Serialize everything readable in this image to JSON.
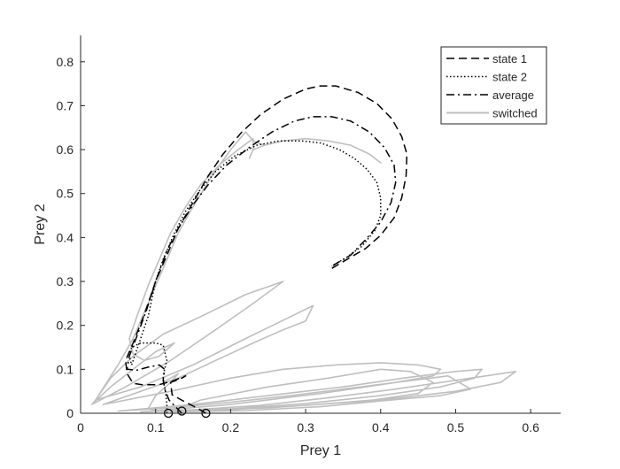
{
  "chart_data": {
    "type": "line",
    "title": "",
    "xlabel": "Prey 1",
    "ylabel": "Prey 2",
    "xlim": [
      0,
      0.64
    ],
    "ylim": [
      0,
      0.86
    ],
    "x_ticks": [
      0,
      0.1,
      0.2,
      0.3,
      0.4,
      0.5,
      0.6
    ],
    "x_tick_labels": [
      "0",
      "0.1",
      "0.2",
      "0.3",
      "0.4",
      "0.5",
      "0.6"
    ],
    "y_ticks": [
      0,
      0.1,
      0.2,
      0.3,
      0.4,
      0.5,
      0.6,
      0.7,
      0.8
    ],
    "y_tick_labels": [
      "0",
      "0.1",
      "0.2",
      "0.3",
      "0.4",
      "0.5",
      "0.6",
      "0.7",
      "0.8"
    ],
    "grid": false,
    "legend_position": "top-right",
    "series": [
      {
        "name": "state 1",
        "style": "dashed",
        "color": "#000000",
        "points": [
          [
            0.167,
            0.0
          ],
          [
            0.155,
            0.012
          ],
          [
            0.14,
            0.025
          ],
          [
            0.122,
            0.042
          ],
          [
            0.12,
            0.07
          ],
          [
            0.135,
            0.08
          ],
          [
            0.14,
            0.085
          ],
          [
            0.125,
            0.075
          ],
          [
            0.105,
            0.065
          ],
          [
            0.082,
            0.065
          ],
          [
            0.07,
            0.068
          ],
          [
            0.062,
            0.09
          ],
          [
            0.06,
            0.12
          ],
          [
            0.07,
            0.16
          ],
          [
            0.085,
            0.225
          ],
          [
            0.1,
            0.3
          ],
          [
            0.115,
            0.36
          ],
          [
            0.13,
            0.42
          ],
          [
            0.15,
            0.48
          ],
          [
            0.17,
            0.54
          ],
          [
            0.19,
            0.59
          ],
          [
            0.215,
            0.64
          ],
          [
            0.24,
            0.68
          ],
          [
            0.27,
            0.715
          ],
          [
            0.3,
            0.738
          ],
          [
            0.32,
            0.745
          ],
          [
            0.34,
            0.745
          ],
          [
            0.37,
            0.73
          ],
          [
            0.395,
            0.705
          ],
          [
            0.415,
            0.67
          ],
          [
            0.428,
            0.63
          ],
          [
            0.435,
            0.59
          ],
          [
            0.434,
            0.54
          ],
          [
            0.428,
            0.49
          ],
          [
            0.418,
            0.445
          ],
          [
            0.4,
            0.405
          ],
          [
            0.38,
            0.375
          ],
          [
            0.355,
            0.35
          ],
          [
            0.335,
            0.33
          ]
        ]
      },
      {
        "name": "state 2",
        "style": "dotted",
        "color": "#000000",
        "points": [
          [
            0.115,
            0.0
          ],
          [
            0.115,
            0.02
          ],
          [
            0.113,
            0.05
          ],
          [
            0.11,
            0.08
          ],
          [
            0.112,
            0.1
          ],
          [
            0.115,
            0.12
          ],
          [
            0.11,
            0.155
          ],
          [
            0.1,
            0.16
          ],
          [
            0.08,
            0.16
          ],
          [
            0.068,
            0.15
          ],
          [
            0.065,
            0.13
          ],
          [
            0.068,
            0.11
          ],
          [
            0.078,
            0.16
          ],
          [
            0.09,
            0.22
          ],
          [
            0.1,
            0.3
          ],
          [
            0.11,
            0.35
          ],
          [
            0.125,
            0.41
          ],
          [
            0.14,
            0.46
          ],
          [
            0.16,
            0.51
          ],
          [
            0.18,
            0.55
          ],
          [
            0.205,
            0.585
          ],
          [
            0.235,
            0.61
          ],
          [
            0.265,
            0.62
          ],
          [
            0.295,
            0.62
          ],
          [
            0.32,
            0.615
          ],
          [
            0.345,
            0.6
          ],
          [
            0.365,
            0.58
          ],
          [
            0.382,
            0.555
          ],
          [
            0.395,
            0.525
          ],
          [
            0.4,
            0.49
          ],
          [
            0.4,
            0.45
          ],
          [
            0.392,
            0.415
          ],
          [
            0.375,
            0.38
          ],
          [
            0.355,
            0.355
          ],
          [
            0.335,
            0.335
          ]
        ]
      },
      {
        "name": "average",
        "style": "dashdot",
        "color": "#000000",
        "points": [
          [
            0.135,
            0.0
          ],
          [
            0.128,
            0.012
          ],
          [
            0.118,
            0.03
          ],
          [
            0.113,
            0.05
          ],
          [
            0.11,
            0.075
          ],
          [
            0.112,
            0.1
          ],
          [
            0.105,
            0.11
          ],
          [
            0.09,
            0.105
          ],
          [
            0.075,
            0.098
          ],
          [
            0.062,
            0.1
          ],
          [
            0.065,
            0.13
          ],
          [
            0.075,
            0.175
          ],
          [
            0.088,
            0.235
          ],
          [
            0.1,
            0.3
          ],
          [
            0.115,
            0.37
          ],
          [
            0.13,
            0.42
          ],
          [
            0.15,
            0.475
          ],
          [
            0.17,
            0.52
          ],
          [
            0.195,
            0.565
          ],
          [
            0.225,
            0.605
          ],
          [
            0.255,
            0.64
          ],
          [
            0.285,
            0.665
          ],
          [
            0.31,
            0.675
          ],
          [
            0.335,
            0.675
          ],
          [
            0.36,
            0.665
          ],
          [
            0.385,
            0.64
          ],
          [
            0.405,
            0.605
          ],
          [
            0.418,
            0.565
          ],
          [
            0.42,
            0.525
          ],
          [
            0.414,
            0.48
          ],
          [
            0.4,
            0.435
          ],
          [
            0.38,
            0.395
          ],
          [
            0.36,
            0.36
          ],
          [
            0.345,
            0.345
          ],
          [
            0.335,
            0.335
          ]
        ]
      },
      {
        "name": "switched",
        "style": "solid",
        "color": "#bfbfbf",
        "points": [
          [
            0.015,
            0.02
          ],
          [
            0.04,
            0.06
          ],
          [
            0.07,
            0.1
          ],
          [
            0.1,
            0.14
          ],
          [
            0.125,
            0.16
          ],
          [
            0.105,
            0.13
          ],
          [
            0.085,
            0.12
          ],
          [
            0.07,
            0.135
          ],
          [
            0.065,
            0.17
          ],
          [
            0.075,
            0.22
          ],
          [
            0.09,
            0.29
          ],
          [
            0.105,
            0.35
          ],
          [
            0.12,
            0.41
          ],
          [
            0.14,
            0.47
          ],
          [
            0.16,
            0.52
          ],
          [
            0.185,
            0.565
          ],
          [
            0.21,
            0.6
          ],
          [
            0.23,
            0.625
          ],
          [
            0.23,
            0.6
          ],
          [
            0.225,
            0.58
          ],
          [
            0.23,
            0.6
          ],
          [
            0.245,
            0.61
          ],
          [
            0.27,
            0.62
          ],
          [
            0.3,
            0.625
          ],
          [
            0.33,
            0.62
          ],
          [
            0.36,
            0.61
          ],
          [
            0.385,
            0.59
          ],
          [
            0.4,
            0.57
          ],
          [
            0.385,
            0.59
          ],
          [
            0.36,
            0.61
          ],
          [
            0.33,
            0.62
          ],
          [
            0.3,
            0.625
          ],
          [
            0.27,
            0.62
          ],
          [
            0.245,
            0.61
          ],
          [
            0.23,
            0.62
          ],
          [
            0.22,
            0.64
          ],
          [
            0.2,
            0.6
          ],
          [
            0.175,
            0.54
          ],
          [
            0.15,
            0.47
          ],
          [
            0.13,
            0.41
          ],
          [
            0.11,
            0.33
          ],
          [
            0.09,
            0.25
          ],
          [
            0.07,
            0.17
          ],
          [
            0.05,
            0.11
          ],
          [
            0.035,
            0.07
          ],
          [
            0.02,
            0.03
          ],
          [
            0.015,
            0.02
          ],
          [
            0.06,
            0.06
          ],
          [
            0.12,
            0.12
          ],
          [
            0.18,
            0.19
          ],
          [
            0.23,
            0.25
          ],
          [
            0.27,
            0.3
          ],
          [
            0.22,
            0.27
          ],
          [
            0.16,
            0.22
          ],
          [
            0.11,
            0.18
          ],
          [
            0.07,
            0.13
          ],
          [
            0.04,
            0.08
          ],
          [
            0.02,
            0.03
          ],
          [
            0.08,
            0.06
          ],
          [
            0.15,
            0.11
          ],
          [
            0.22,
            0.17
          ],
          [
            0.28,
            0.22
          ],
          [
            0.31,
            0.245
          ],
          [
            0.3,
            0.21
          ],
          [
            0.27,
            0.19
          ],
          [
            0.23,
            0.16
          ],
          [
            0.18,
            0.12
          ],
          [
            0.13,
            0.08
          ],
          [
            0.08,
            0.05
          ],
          [
            0.03,
            0.02
          ],
          [
            0.12,
            0.05
          ],
          [
            0.2,
            0.08
          ],
          [
            0.27,
            0.1
          ],
          [
            0.34,
            0.11
          ],
          [
            0.4,
            0.115
          ],
          [
            0.45,
            0.11
          ],
          [
            0.48,
            0.1
          ],
          [
            0.47,
            0.085
          ],
          [
            0.42,
            0.07
          ],
          [
            0.35,
            0.055
          ],
          [
            0.28,
            0.04
          ],
          [
            0.2,
            0.025
          ],
          [
            0.12,
            0.012
          ],
          [
            0.05,
            0.005
          ],
          [
            0.15,
            0.02
          ],
          [
            0.25,
            0.04
          ],
          [
            0.35,
            0.06
          ],
          [
            0.43,
            0.08
          ],
          [
            0.5,
            0.095
          ],
          [
            0.535,
            0.1
          ],
          [
            0.525,
            0.08
          ],
          [
            0.48,
            0.06
          ],
          [
            0.4,
            0.04
          ],
          [
            0.3,
            0.022
          ],
          [
            0.2,
            0.01
          ],
          [
            0.1,
            0.004
          ],
          [
            0.25,
            0.012
          ],
          [
            0.4,
            0.03
          ],
          [
            0.5,
            0.05
          ],
          [
            0.56,
            0.07
          ],
          [
            0.58,
            0.095
          ],
          [
            0.56,
            0.09
          ],
          [
            0.5,
            0.075
          ],
          [
            0.42,
            0.055
          ],
          [
            0.33,
            0.035
          ],
          [
            0.24,
            0.018
          ],
          [
            0.15,
            0.008
          ],
          [
            0.08,
            0.003
          ],
          [
            0.2,
            0.02
          ],
          [
            0.32,
            0.045
          ],
          [
            0.42,
            0.07
          ],
          [
            0.49,
            0.085
          ],
          [
            0.52,
            0.055
          ],
          [
            0.48,
            0.04
          ],
          [
            0.4,
            0.028
          ],
          [
            0.32,
            0.015
          ],
          [
            0.22,
            0.006
          ],
          [
            0.12,
            0.003
          ],
          [
            0.16,
            0.03
          ],
          [
            0.25,
            0.06
          ],
          [
            0.33,
            0.08
          ],
          [
            0.4,
            0.1
          ],
          [
            0.44,
            0.095
          ],
          [
            0.47,
            0.07
          ],
          [
            0.45,
            0.045
          ],
          [
            0.39,
            0.03
          ],
          [
            0.3,
            0.018
          ],
          [
            0.2,
            0.008
          ],
          [
            0.11,
            0.004
          ],
          [
            0.09,
            0.01
          ],
          [
            0.1,
            0.04
          ],
          [
            0.12,
            0.07
          ],
          [
            0.13,
            0.09
          ],
          [
            0.11,
            0.07
          ]
        ]
      }
    ],
    "start_markers": {
      "shape": "circle",
      "points": [
        [
          0.117,
          0.0
        ],
        [
          0.135,
          0.005
        ],
        [
          0.167,
          0.0
        ]
      ]
    }
  }
}
